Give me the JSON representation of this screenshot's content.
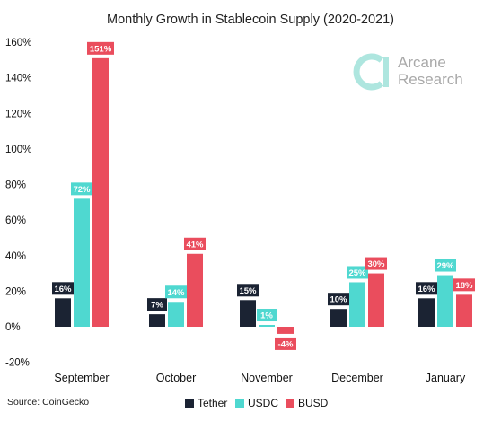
{
  "chart_data": {
    "type": "bar",
    "title": "Monthly Growth in Stablecoin Supply (2020-2021)",
    "categories": [
      "September",
      "October",
      "November",
      "December",
      "January"
    ],
    "series": [
      {
        "name": "Tether",
        "color": "#1b2333",
        "values": [
          16,
          7,
          15,
          10,
          16
        ],
        "labels": [
          "16%",
          "7%",
          "15%",
          "10%",
          "16%"
        ]
      },
      {
        "name": "USDC",
        "color": "#4fd8d0",
        "values": [
          72,
          14,
          1,
          25,
          29
        ],
        "labels": [
          "72%",
          "14%",
          "1%",
          "25%",
          "29%"
        ]
      },
      {
        "name": "BUSD",
        "color": "#ea4d5d",
        "values": [
          151,
          41,
          -4,
          30,
          18
        ],
        "labels": [
          "151%",
          "41%",
          "-4%",
          "30%",
          "18%"
        ]
      }
    ],
    "ylim": [
      -20,
      160
    ],
    "yticks": [
      -20,
      0,
      20,
      40,
      60,
      80,
      100,
      120,
      140,
      160
    ],
    "ytick_labels": [
      "-20%",
      "0%",
      "20%",
      "40%",
      "60%",
      "80%",
      "100%",
      "120%",
      "140%",
      "160%"
    ],
    "grid": false,
    "legend_position": "bottom-center"
  },
  "source_text": "Source: CoinGecko",
  "brand": {
    "line1": "Arcane",
    "line2": "Research",
    "icon": "arcane-logo-icon",
    "color": "#aee6df"
  }
}
